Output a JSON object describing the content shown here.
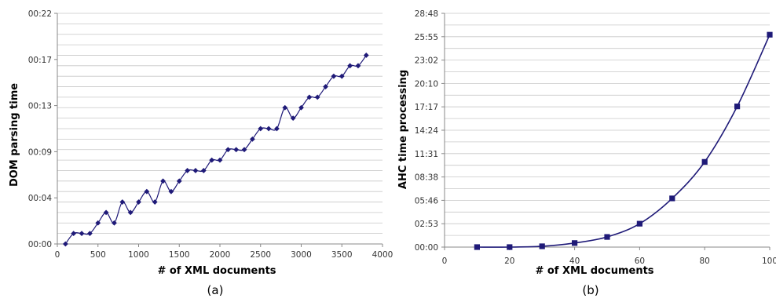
{
  "chart_data": [
    {
      "type": "line",
      "caption": "(a)",
      "xlabel": "# of XML documents",
      "ylabel": "DOM parsing time",
      "xlim": [
        0,
        4000
      ],
      "x_ticks": [
        "0",
        "500",
        "1000",
        "1500",
        "2000",
        "2500",
        "3000",
        "3500",
        "4000"
      ],
      "y_ticks": [
        "00:00",
        "00:04",
        "00:09",
        "00:13",
        "00:17",
        "00:22"
      ],
      "y_range_seconds": [
        0,
        22
      ],
      "y_unit": "seconds",
      "grid": "horizontal",
      "marker": "diamond",
      "smooth": true,
      "series": [
        {
          "x": [
            100,
            200,
            300,
            400,
            500,
            600,
            700,
            800,
            900,
            1000,
            1100,
            1200,
            1300,
            1400,
            1500,
            1600,
            1700,
            1800,
            1900,
            2000,
            2100,
            2200,
            2300,
            2400,
            2500,
            2600,
            2700,
            2800,
            2900,
            3000,
            3100,
            3200,
            3300,
            3400,
            3500,
            3600,
            3700,
            3800
          ],
          "y": [
            0,
            1,
            1,
            1,
            2,
            3,
            2,
            4,
            3,
            4,
            5,
            4,
            6,
            5,
            6,
            7,
            7,
            7,
            8,
            8,
            9,
            9,
            9,
            10,
            11,
            11,
            11,
            13,
            12,
            13,
            14,
            14,
            15,
            16,
            16,
            17,
            17,
            18
          ]
        }
      ]
    },
    {
      "type": "line",
      "caption": "(b)",
      "xlabel": "# of XML documents",
      "ylabel": "AHC time processing",
      "xlim": [
        0,
        100
      ],
      "x_ticks": [
        "0",
        "20",
        "40",
        "60",
        "80",
        "100"
      ],
      "y_ticks": [
        "00:00",
        "02:53",
        "05:46",
        "08:38",
        "11:31",
        "14:24",
        "17:17",
        "20:10",
        "23:02",
        "25:55",
        "28:48"
      ],
      "y_range_seconds": [
        0,
        1728
      ],
      "y_unit": "seconds",
      "grid": "horizontal",
      "marker": "square",
      "smooth": true,
      "series": [
        {
          "x": [
            10,
            20,
            30,
            40,
            50,
            60,
            70,
            80,
            90,
            100
          ],
          "y": [
            0,
            0,
            6,
            30,
            75,
            173,
            360,
            630,
            1040,
            1570
          ]
        }
      ]
    }
  ],
  "colors": {
    "series": "#1f1a78",
    "grid": "#c8c8c8",
    "axis": "#888888"
  }
}
